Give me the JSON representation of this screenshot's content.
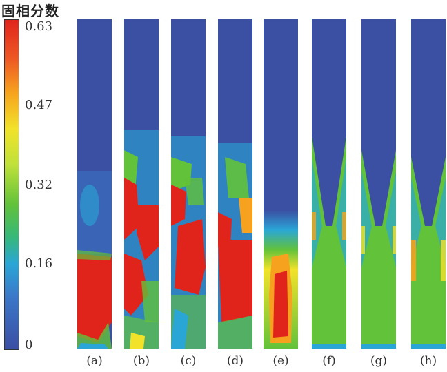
{
  "legend": {
    "title": "固相分数",
    "ticks": [
      "0.63",
      "0.47",
      "0.32",
      "0.16",
      "0"
    ]
  },
  "panels": [
    {
      "label": "(a)",
      "kind": "experiment"
    },
    {
      "label": "(b)",
      "kind": "experiment"
    },
    {
      "label": "(c)",
      "kind": "experiment"
    },
    {
      "label": "(d)",
      "kind": "experiment"
    },
    {
      "label": "(e)",
      "kind": "simulation"
    },
    {
      "label": "(f)",
      "kind": "simulation"
    },
    {
      "label": "(g)",
      "kind": "simulation"
    },
    {
      "label": "(h)",
      "kind": "simulation"
    }
  ],
  "colors": {
    "low": "#3b4fa3",
    "mid_low": "#2aa6d6",
    "mid": "#62c23a",
    "mid_high": "#f2e22a",
    "high": "#e0241c"
  }
}
